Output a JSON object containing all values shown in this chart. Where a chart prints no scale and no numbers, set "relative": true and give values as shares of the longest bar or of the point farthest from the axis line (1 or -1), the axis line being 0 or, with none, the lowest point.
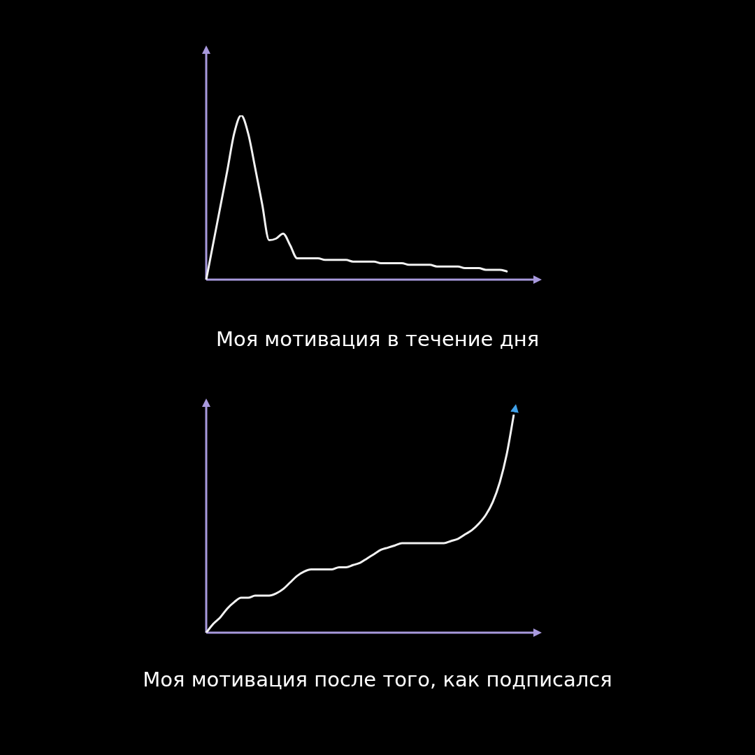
{
  "chart_data": [
    {
      "type": "line",
      "title": "Моя мотивация в течение дня",
      "relative": true,
      "color": "#f2f2f2",
      "categories": [
        null,
        null,
        null,
        null,
        null,
        null,
        null,
        null,
        null,
        null,
        null,
        null,
        null,
        null,
        null,
        null,
        null,
        null,
        null,
        null,
        null,
        null,
        null,
        null,
        null,
        null,
        null,
        null,
        null,
        null,
        null,
        null,
        null,
        null,
        null,
        null,
        null,
        null,
        null,
        null,
        null,
        null,
        null,
        null
      ],
      "values": [
        0,
        0.22,
        0.44,
        0.66,
        0.89,
        1,
        0.89,
        0.68,
        0.46,
        0.24,
        0.25,
        0.28,
        0.21,
        0.13,
        0.13,
        0.13,
        0.13,
        0.12,
        0.12,
        0.12,
        0.12,
        0.11,
        0.11,
        0.11,
        0.11,
        0.1,
        0.1,
        0.1,
        0.1,
        0.09,
        0.09,
        0.09,
        0.09,
        0.08,
        0.08,
        0.08,
        0.08,
        0.07,
        0.07,
        0.07,
        0.06,
        0.06,
        0.06,
        0.05
      ]
    },
    {
      "type": "line",
      "title": "Моя мотивация после того, как подписался",
      "relative": true,
      "color": "#f2f2f2",
      "categories": [
        null,
        null,
        null,
        null,
        null,
        null,
        null,
        null,
        null,
        null,
        null,
        null,
        null,
        null,
        null,
        null,
        null,
        null,
        null,
        null,
        null,
        null,
        null,
        null,
        null,
        null,
        null,
        null,
        null,
        null,
        null,
        null,
        null,
        null,
        null,
        null,
        null,
        null,
        null,
        null,
        null,
        null,
        null,
        null,
        null
      ],
      "values": [
        0,
        0.04,
        0.07,
        0.11,
        0.14,
        0.16,
        0.16,
        0.17,
        0.17,
        0.17,
        0.18,
        0.2,
        0.23,
        0.26,
        0.28,
        0.29,
        0.29,
        0.29,
        0.29,
        0.3,
        0.3,
        0.31,
        0.32,
        0.34,
        0.36,
        0.38,
        0.39,
        0.4,
        0.41,
        0.41,
        0.41,
        0.41,
        0.41,
        0.41,
        0.41,
        0.42,
        0.43,
        0.45,
        0.47,
        0.5,
        0.54,
        0.6,
        0.69,
        0.82,
        1
      ]
    }
  ]
}
